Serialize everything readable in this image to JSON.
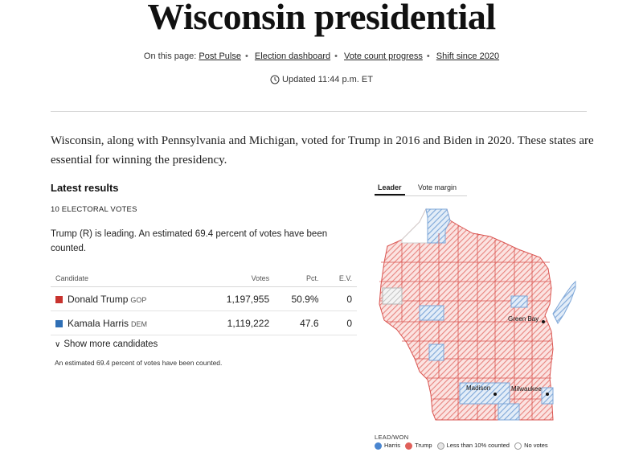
{
  "header": {
    "title": "Wisconsin presidential",
    "on_this_page_label": "On this page:",
    "links": [
      "Post Pulse",
      "Election dashboard",
      "Vote count progress",
      "Shift since 2020"
    ],
    "updated": "Updated 11:44 p.m. ET"
  },
  "intro": "Wisconsin, along with Pennsylvania and Michigan, voted for Trump in 2016 and Biden in 2020. These states are essential for winning the presidency.",
  "results": {
    "heading": "Latest results",
    "electoral_votes": "10 ELECTORAL VOTES",
    "leading_text": "Trump (R) is leading. An estimated 69.4 percent of votes have been counted.",
    "columns": [
      "Candidate",
      "Votes",
      "Pct.",
      "E.V."
    ],
    "rows": [
      {
        "name": "Donald Trump",
        "party": "GOP",
        "votes": "1,197,955",
        "pct": "50.9%",
        "ev": "0",
        "color": "#c8332e"
      },
      {
        "name": "Kamala Harris",
        "party": "DEM",
        "votes": "1,119,222",
        "pct": "47.6",
        "ev": "0",
        "color": "#2f6fb5"
      }
    ],
    "show_more": "Show more candidates",
    "footnote": "An estimated 69.4 percent of votes have been counted."
  },
  "map": {
    "tabs": [
      "Leader",
      "Vote margin"
    ],
    "active_tab": "Leader",
    "cities": [
      "Green Bay",
      "Madison",
      "Milwaukee"
    ],
    "legend_title": "LEAD/WON",
    "legend": [
      "Harris",
      "Trump",
      "Less than 10% counted",
      "No votes"
    ],
    "colors": {
      "trump": "#e8847f",
      "harris": "#7ea7d8",
      "border": "#d9534f"
    }
  }
}
